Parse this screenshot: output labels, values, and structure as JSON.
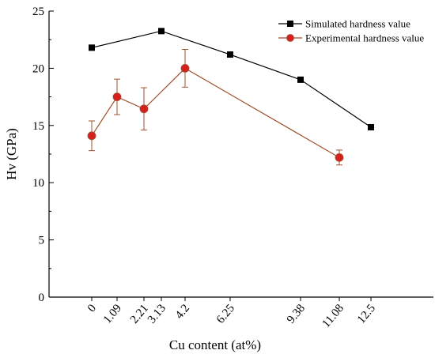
{
  "chart_data": {
    "type": "line",
    "xlabel": "Cu content (at%)",
    "ylabel": "Hv (GPa)",
    "ylim": [
      0,
      25
    ],
    "yticks": [
      0,
      5,
      10,
      15,
      20,
      25
    ],
    "x_tick_labels": [
      "0",
      "1.09",
      "2.21",
      "3.13",
      "4.2",
      "6.25",
      "9.38",
      "11.08",
      "12.5"
    ],
    "grid": false,
    "legend_position": "top-right",
    "series": [
      {
        "name": "Simulated hardness value",
        "color": "#000000",
        "marker": "square",
        "x": [
          0,
          3.13,
          6.25,
          9.38,
          12.5
        ],
        "y": [
          21.8,
          23.25,
          21.2,
          19.0,
          14.85
        ]
      },
      {
        "name": "Experimental hardness value",
        "color": "#a0522d",
        "marker_color": "#d62020",
        "marker": "circle",
        "x": [
          0,
          1.09,
          2.21,
          4.2,
          11.08
        ],
        "y": [
          14.1,
          17.5,
          16.45,
          20.0,
          12.2
        ],
        "error": [
          1.3,
          1.55,
          1.85,
          1.65,
          0.65
        ]
      }
    ]
  }
}
